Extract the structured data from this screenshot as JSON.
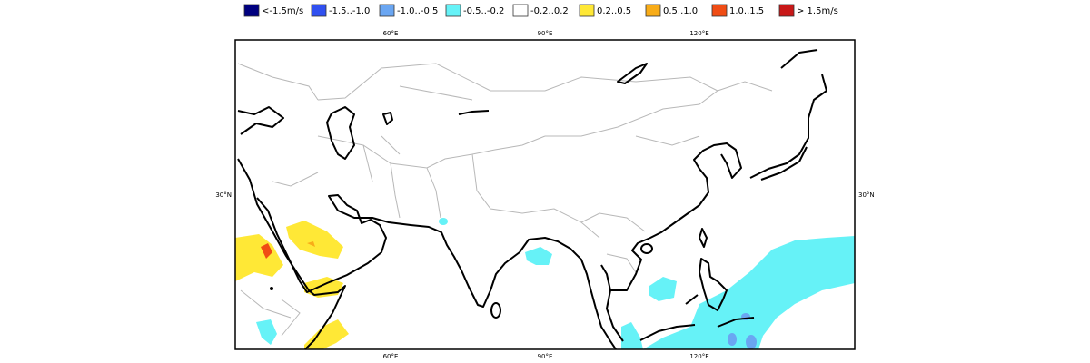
{
  "legend": {
    "items": [
      {
        "label": "<-1.5m/s",
        "color": "#00007f"
      },
      {
        "label": "-1.5..-1.0",
        "color": "#3050f0"
      },
      {
        "label": "-1.0..-0.5",
        "color": "#6aa6f2"
      },
      {
        "label": "-0.5..-0.2",
        "color": "#66f2f7"
      },
      {
        "label": "-0.2..0.2",
        "color": "#ffffff"
      },
      {
        "label": "0.2..0.5",
        "color": "#ffe836"
      },
      {
        "label": "0.5..1.0",
        "color": "#f8ac18"
      },
      {
        "label": "1.0..1.5",
        "color": "#f04c14"
      },
      {
        "label": "> 1.5m/s",
        "color": "#c81818"
      }
    ]
  },
  "map": {
    "longitude_labels": [
      "60°E",
      "90°E",
      "120°E"
    ],
    "latitude_labels": [
      "30°N"
    ]
  }
}
